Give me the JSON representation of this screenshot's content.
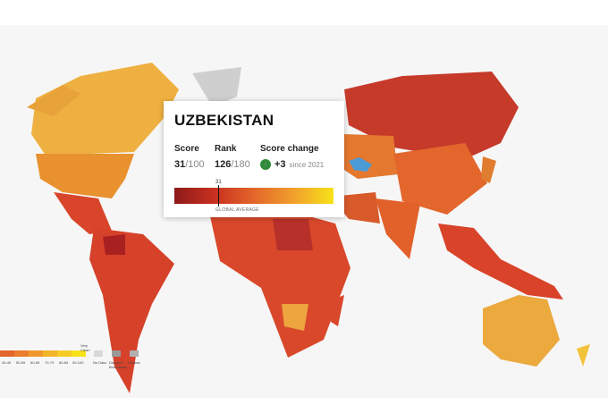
{
  "country": "UZBEKISTAN",
  "score": {
    "label": "Score",
    "value": "31",
    "max": "/100"
  },
  "rank": {
    "label": "Rank",
    "value": "126",
    "max": "/180"
  },
  "score_change": {
    "label": "Score change",
    "value": "+3",
    "since": "since 2021"
  },
  "gauge": {
    "marker_label": "31",
    "caption": "GLOBAL AVERAGE"
  },
  "legend": {
    "ranges": [
      "40-49",
      "50-59",
      "60-69",
      "70-79",
      "80-89",
      "90-100"
    ],
    "top_label": "Very Clean",
    "no_data": "No Data",
    "disputed": "Disputed Boundaries",
    "unclear": "Unclear"
  }
}
